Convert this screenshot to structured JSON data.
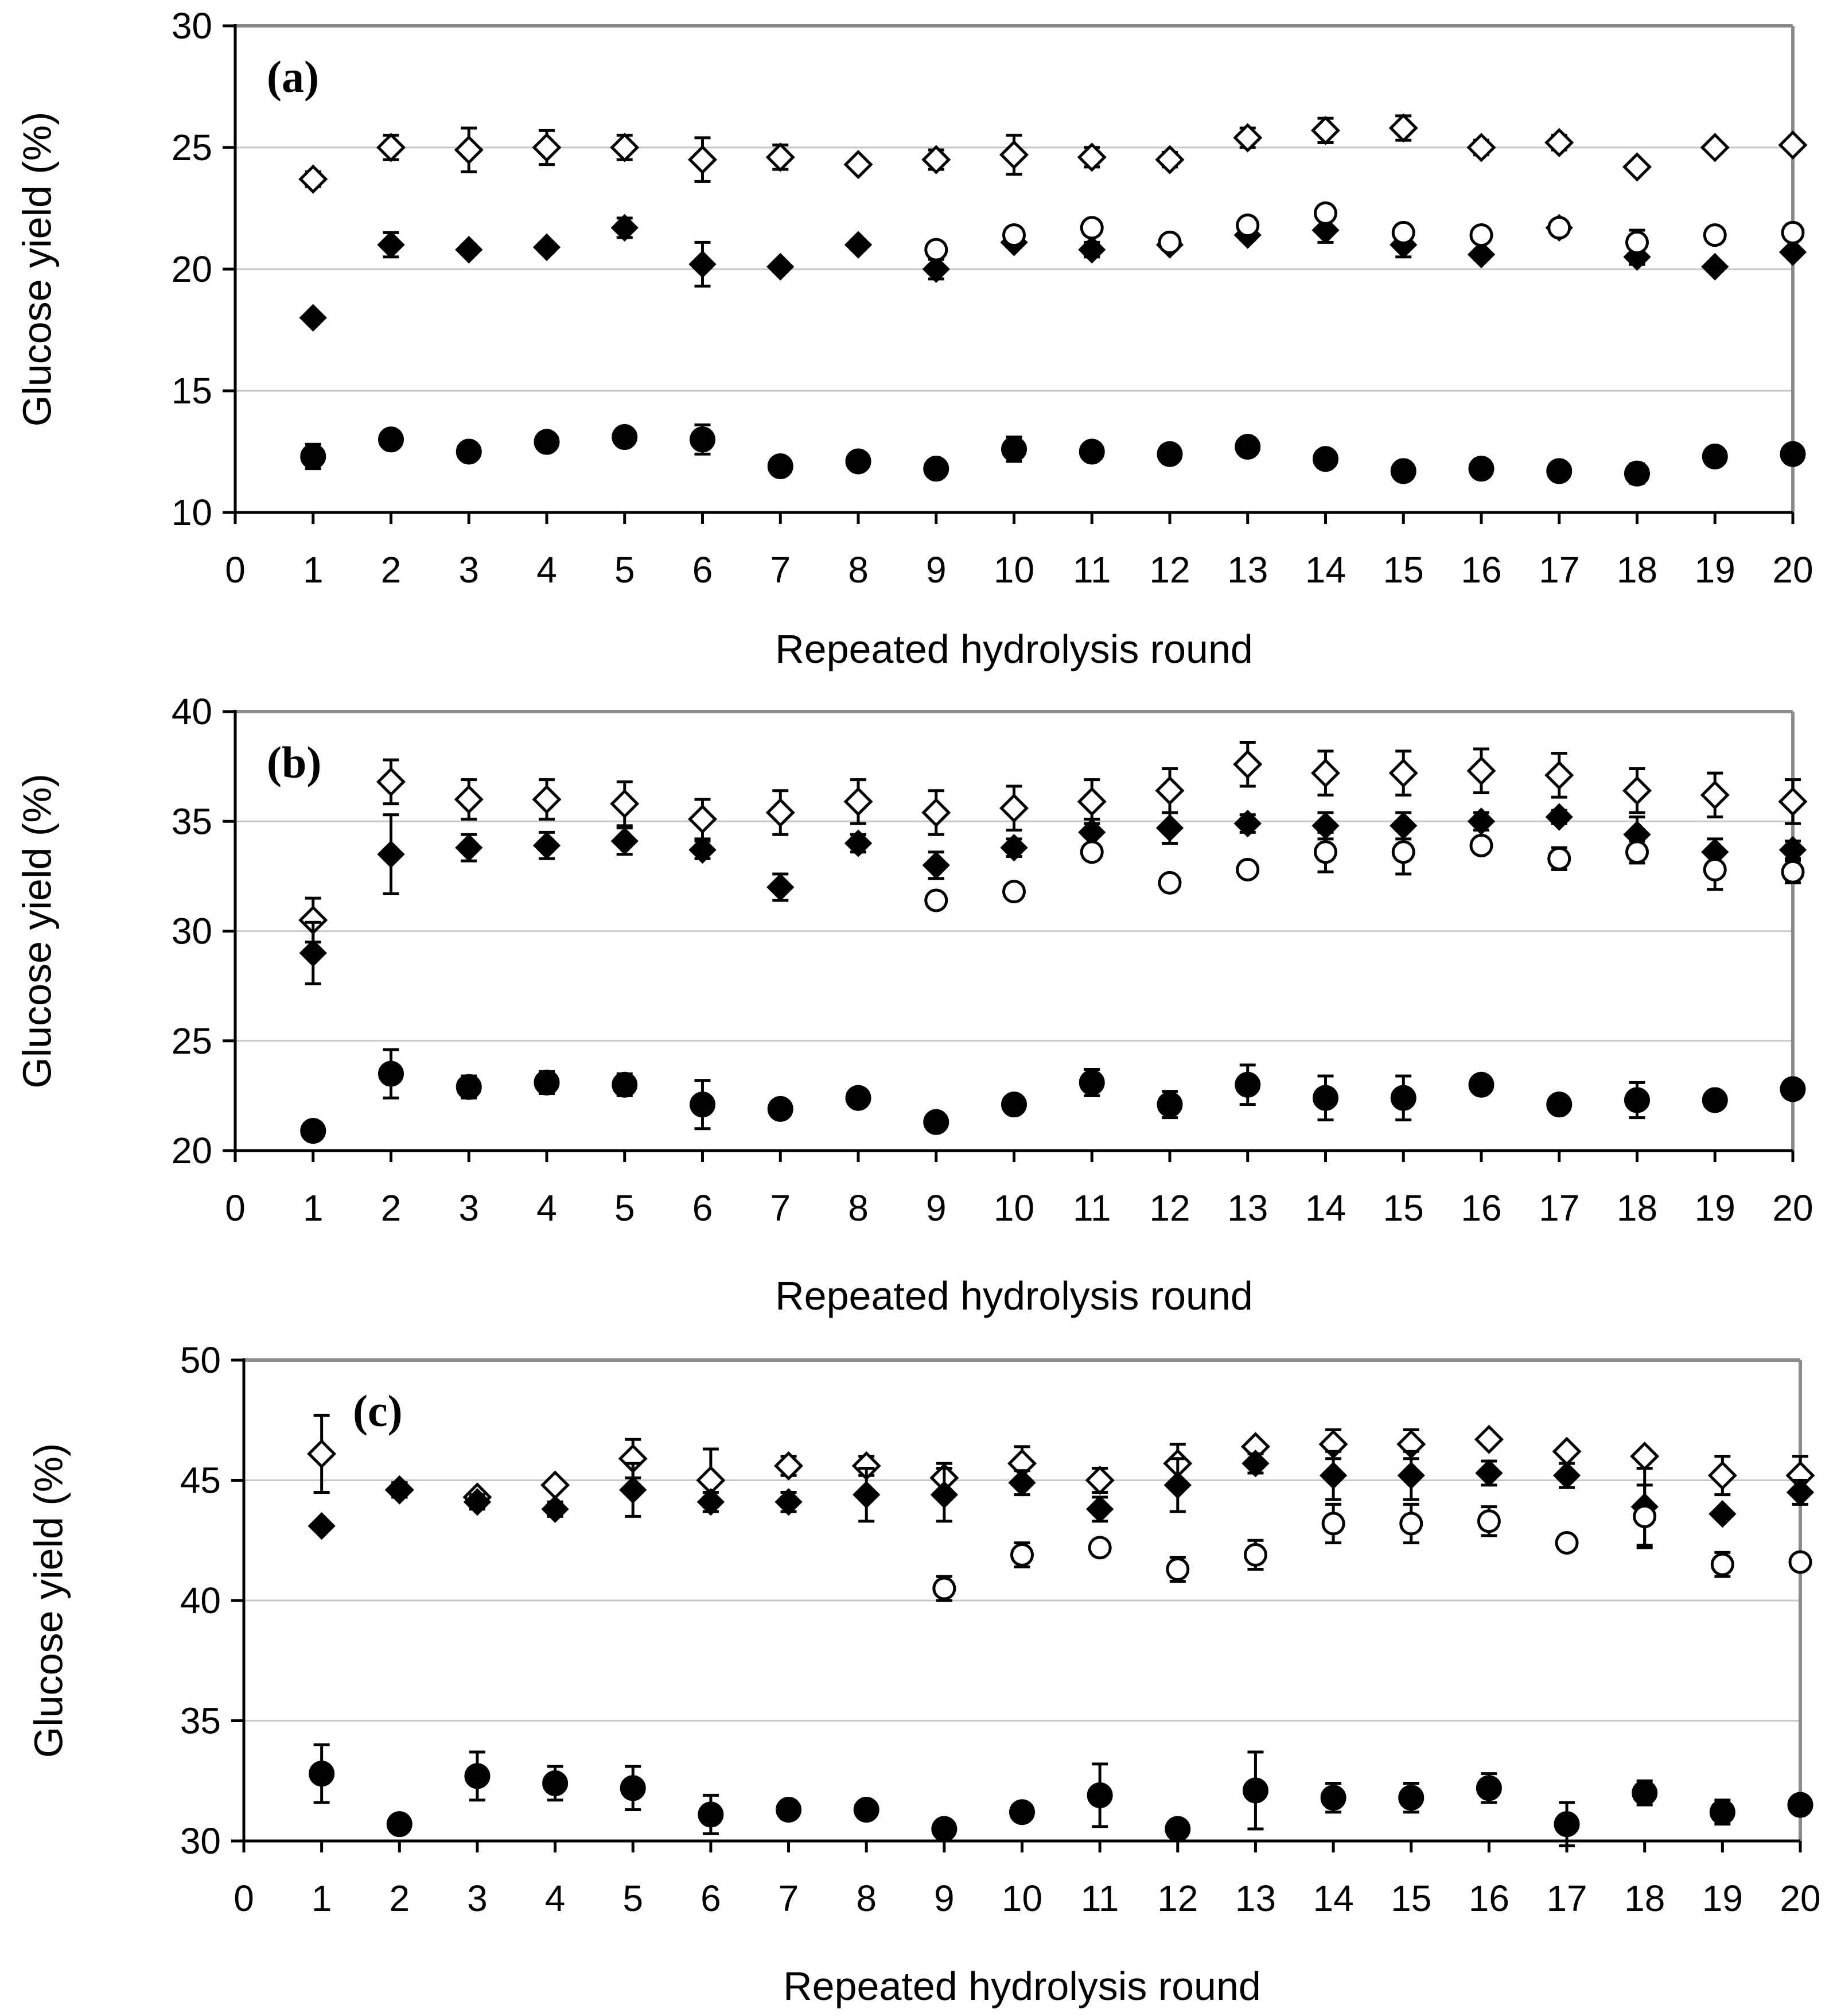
{
  "chart_data": [
    {
      "type": "scatter",
      "panel_label": "(a)",
      "xlabel": "Repeated hydrolysis round",
      "ylabel": "Glucose yield (%)",
      "xlim": [
        0,
        20
      ],
      "ylim": [
        10,
        30
      ],
      "yticks": [
        10,
        15,
        20,
        25,
        30
      ],
      "xticks": [
        0,
        1,
        2,
        3,
        4,
        5,
        6,
        7,
        8,
        9,
        10,
        11,
        12,
        13,
        14,
        15,
        16,
        17,
        18,
        19,
        20
      ],
      "grid": "horizontal",
      "series": [
        {
          "name": "open-diamond",
          "marker": "diamond-open",
          "x": [
            1,
            2,
            3,
            4,
            5,
            6,
            7,
            8,
            9,
            10,
            11,
            12,
            13,
            14,
            15,
            16,
            17,
            18,
            19,
            20
          ],
          "values": [
            23.7,
            25.0,
            24.9,
            25.0,
            25.0,
            24.5,
            24.6,
            24.3,
            24.5,
            24.7,
            24.6,
            24.5,
            25.4,
            25.7,
            25.8,
            25.0,
            25.2,
            24.2,
            25.0,
            25.1
          ],
          "errors": [
            0.3,
            0.5,
            0.9,
            0.7,
            0.5,
            0.9,
            0.5,
            0.0,
            0.4,
            0.8,
            0.4,
            0.3,
            0.4,
            0.5,
            0.5,
            0.3,
            0.3,
            0.0,
            0.0,
            0.0
          ]
        },
        {
          "name": "filled-diamond",
          "marker": "diamond-filled",
          "x": [
            1,
            2,
            3,
            4,
            5,
            6,
            7,
            8,
            9,
            10,
            11,
            12,
            13,
            14,
            15,
            16,
            17,
            18,
            19,
            20
          ],
          "values": [
            18.0,
            21.0,
            20.8,
            20.9,
            21.7,
            20.2,
            20.1,
            21.0,
            20.0,
            21.1,
            20.8,
            21.0,
            21.4,
            21.6,
            21.0,
            20.6,
            21.7,
            20.5,
            20.1,
            20.7
          ],
          "errors": [
            0.0,
            0.5,
            0.2,
            0.2,
            0.4,
            0.9,
            0.2,
            0.2,
            0.4,
            0.2,
            0.3,
            0.2,
            0.2,
            0.5,
            0.5,
            0.2,
            0.0,
            0.3,
            0.0,
            0.0
          ]
        },
        {
          "name": "open-circle",
          "marker": "circle-open",
          "x": [
            9,
            10,
            11,
            12,
            13,
            14,
            15,
            16,
            17,
            18,
            19,
            20
          ],
          "values": [
            20.8,
            21.4,
            21.7,
            21.1,
            21.8,
            22.3,
            21.5,
            21.4,
            21.7,
            21.1,
            21.4,
            21.5
          ],
          "errors": [
            0.0,
            0.3,
            0.2,
            0.3,
            0.2,
            0.3,
            0.3,
            0.2,
            0.0,
            0.5,
            0.0,
            0.3
          ]
        },
        {
          "name": "filled-circle",
          "marker": "circle-filled",
          "x": [
            1,
            2,
            3,
            4,
            5,
            6,
            7,
            8,
            9,
            10,
            11,
            12,
            13,
            14,
            15,
            16,
            17,
            18,
            19,
            20
          ],
          "values": [
            12.3,
            13.0,
            12.5,
            12.9,
            13.1,
            13.0,
            11.9,
            12.1,
            11.8,
            12.6,
            12.5,
            12.4,
            12.7,
            12.2,
            11.7,
            11.8,
            11.7,
            11.6,
            12.3,
            12.4
          ],
          "errors": [
            0.5,
            0.3,
            0.2,
            0.2,
            0.2,
            0.6,
            0.2,
            0.2,
            0.2,
            0.5,
            0.2,
            0.2,
            0.3,
            0.3,
            0.2,
            0.2,
            0.2,
            0.4,
            0.2,
            0.2
          ]
        }
      ]
    },
    {
      "type": "scatter",
      "panel_label": "(b)",
      "xlabel": "Repeated hydrolysis round",
      "ylabel": "Glucose yield (%)",
      "xlim": [
        0,
        20
      ],
      "ylim": [
        20,
        40
      ],
      "yticks": [
        20,
        25,
        30,
        35,
        40
      ],
      "xticks": [
        0,
        1,
        2,
        3,
        4,
        5,
        6,
        7,
        8,
        9,
        10,
        11,
        12,
        13,
        14,
        15,
        16,
        17,
        18,
        19,
        20
      ],
      "grid": "horizontal",
      "series": [
        {
          "name": "open-diamond",
          "marker": "diamond-open",
          "x": [
            1,
            2,
            3,
            4,
            5,
            6,
            7,
            8,
            9,
            10,
            11,
            12,
            13,
            14,
            15,
            16,
            17,
            18,
            19,
            20
          ],
          "values": [
            30.5,
            36.8,
            36.0,
            36.0,
            35.8,
            35.1,
            35.4,
            35.9,
            35.4,
            35.6,
            35.9,
            36.4,
            37.6,
            37.2,
            37.2,
            37.3,
            37.1,
            36.4,
            36.2,
            35.9
          ],
          "errors": [
            1.0,
            1.0,
            0.9,
            0.9,
            1.0,
            0.9,
            1.0,
            1.0,
            1.0,
            1.0,
            1.0,
            1.0,
            1.0,
            1.0,
            1.0,
            1.0,
            1.0,
            1.0,
            1.0,
            1.0
          ]
        },
        {
          "name": "filled-diamond",
          "marker": "diamond-filled",
          "x": [
            1,
            2,
            3,
            4,
            5,
            6,
            7,
            8,
            9,
            10,
            11,
            12,
            13,
            14,
            15,
            16,
            17,
            18,
            19,
            20
          ],
          "values": [
            29.0,
            33.5,
            33.8,
            33.9,
            34.1,
            33.7,
            32.0,
            34.0,
            33.0,
            33.8,
            34.5,
            34.7,
            34.9,
            34.8,
            34.8,
            35.0,
            35.2,
            34.4,
            33.6,
            33.7
          ],
          "errors": [
            1.4,
            1.8,
            0.6,
            0.6,
            0.6,
            0.4,
            0.6,
            0.4,
            0.6,
            0.4,
            0.6,
            0.7,
            0.4,
            0.6,
            0.6,
            0.4,
            0.3,
            0.8,
            0.6,
            0.4
          ]
        },
        {
          "name": "open-circle",
          "marker": "circle-open",
          "x": [
            9,
            10,
            11,
            12,
            13,
            14,
            15,
            16,
            17,
            18,
            19,
            20
          ],
          "values": [
            31.4,
            31.8,
            33.6,
            32.2,
            32.8,
            33.6,
            33.6,
            33.9,
            33.3,
            33.6,
            32.8,
            32.7
          ],
          "errors": [
            0.0,
            0.0,
            0.3,
            0.3,
            0.0,
            0.9,
            1.0,
            0.3,
            0.5,
            0.5,
            0.9,
            0.5
          ]
        },
        {
          "name": "filled-circle",
          "marker": "circle-filled",
          "x": [
            1,
            2,
            3,
            4,
            5,
            6,
            7,
            8,
            9,
            10,
            11,
            12,
            13,
            14,
            15,
            16,
            17,
            18,
            19,
            20
          ],
          "values": [
            20.9,
            23.5,
            22.9,
            23.1,
            23.0,
            22.1,
            21.9,
            22.4,
            21.3,
            22.1,
            23.1,
            22.1,
            23.0,
            22.4,
            22.4,
            23.0,
            22.1,
            22.3,
            22.3,
            22.8
          ],
          "errors": [
            0.0,
            1.1,
            0.5,
            0.5,
            0.5,
            1.1,
            0.3,
            0.2,
            0.2,
            0.2,
            0.6,
            0.6,
            0.9,
            1.0,
            1.0,
            0.3,
            0.2,
            0.8,
            0.3,
            0.2
          ]
        }
      ]
    },
    {
      "type": "scatter",
      "panel_label": "(c)",
      "xlabel": "Repeated hydrolysis round",
      "ylabel": "Glucose yield (%)",
      "xlim": [
        0,
        20
      ],
      "ylim": [
        30,
        50
      ],
      "yticks": [
        30,
        35,
        40,
        45,
        50
      ],
      "xticks": [
        0,
        1,
        2,
        3,
        4,
        5,
        6,
        7,
        8,
        9,
        10,
        11,
        12,
        13,
        14,
        15,
        16,
        17,
        18,
        19,
        20
      ],
      "grid": "horizontal",
      "series": [
        {
          "name": "open-diamond",
          "marker": "diamond-open",
          "x": [
            1,
            2,
            3,
            4,
            5,
            6,
            7,
            8,
            9,
            10,
            11,
            12,
            13,
            14,
            15,
            16,
            17,
            18,
            19,
            20
          ],
          "values": [
            46.1,
            44.6,
            44.3,
            44.8,
            45.9,
            45.0,
            45.6,
            45.6,
            45.1,
            45.7,
            45.0,
            45.7,
            46.4,
            46.5,
            46.5,
            46.7,
            46.2,
            46.0,
            45.2,
            45.2
          ],
          "errors": [
            1.6,
            0.3,
            0.2,
            0.2,
            0.8,
            1.3,
            0.4,
            0.4,
            0.6,
            0.7,
            0.5,
            0.8,
            0.2,
            0.6,
            0.6,
            0.2,
            0.2,
            0.2,
            0.8,
            0.8
          ]
        },
        {
          "name": "filled-diamond",
          "marker": "diamond-filled",
          "x": [
            1,
            2,
            3,
            4,
            5,
            6,
            7,
            8,
            9,
            10,
            11,
            12,
            13,
            14,
            15,
            16,
            17,
            18,
            19,
            20
          ],
          "values": [
            43.1,
            44.6,
            44.1,
            43.8,
            44.6,
            44.1,
            44.1,
            44.4,
            44.4,
            44.9,
            43.8,
            44.8,
            45.7,
            45.2,
            45.2,
            45.3,
            45.2,
            43.9,
            43.6,
            44.5
          ],
          "errors": [
            0.0,
            0.3,
            0.3,
            0.3,
            1.1,
            0.4,
            0.4,
            1.1,
            1.1,
            0.5,
            0.5,
            1.1,
            0.4,
            1.0,
            1.0,
            0.5,
            0.5,
            1.6,
            0.0,
            0.5
          ]
        },
        {
          "name": "open-circle",
          "marker": "circle-open",
          "x": [
            9,
            10,
            11,
            12,
            13,
            14,
            15,
            16,
            17,
            18,
            19,
            20
          ],
          "values": [
            40.5,
            41.9,
            42.2,
            41.3,
            41.9,
            43.2,
            43.2,
            43.3,
            42.4,
            43.5,
            41.5,
            41.6
          ],
          "errors": [
            0.5,
            0.5,
            0.3,
            0.5,
            0.6,
            0.8,
            0.8,
            0.6,
            0.0,
            1.3,
            0.5,
            0.0
          ]
        },
        {
          "name": "filled-circle",
          "marker": "circle-filled",
          "x": [
            1,
            2,
            3,
            4,
            5,
            6,
            7,
            8,
            9,
            10,
            11,
            12,
            13,
            14,
            15,
            16,
            17,
            18,
            19,
            20
          ],
          "values": [
            32.8,
            30.7,
            32.7,
            32.4,
            32.2,
            31.1,
            31.3,
            31.3,
            30.5,
            31.2,
            31.9,
            30.5,
            32.1,
            31.8,
            31.8,
            32.2,
            30.7,
            32.0,
            31.2,
            31.5
          ],
          "errors": [
            1.2,
            0.0,
            1.0,
            0.7,
            0.9,
            0.8,
            0.3,
            0.2,
            0.0,
            0.2,
            1.3,
            0.0,
            1.6,
            0.6,
            0.6,
            0.6,
            0.9,
            0.5,
            0.5,
            0.3
          ]
        }
      ]
    }
  ]
}
